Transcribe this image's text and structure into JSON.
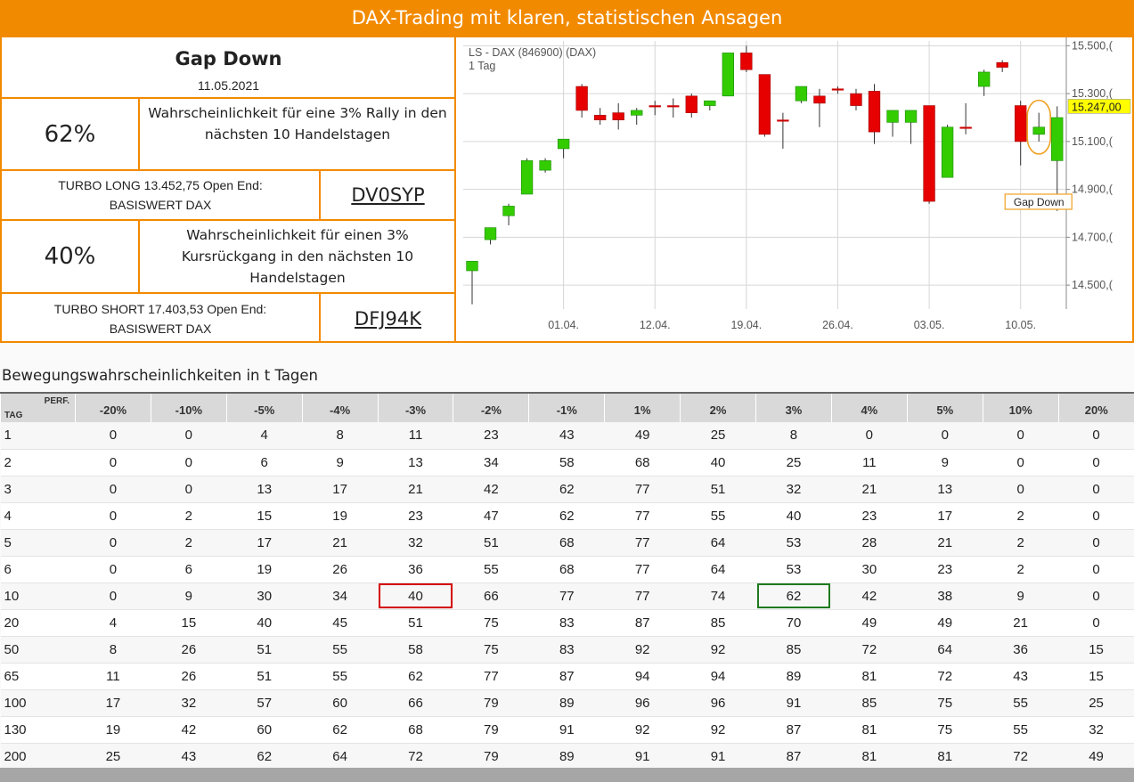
{
  "banner": "DAX-Trading mit klaren, statistischen Ansagen",
  "setup": {
    "title": "Gap Down",
    "date": "11.05.2021",
    "long": {
      "pct": "62%",
      "desc": "Wahrscheinlichkeit für eine 3% Rally in den nächsten 10 Handelstagen",
      "turbo_line1": "TURBO LONG 13.452,75 Open End:",
      "turbo_line2": "BASISWERT DAX",
      "wkn": "DV0SYP"
    },
    "short": {
      "pct": "40%",
      "desc": "Wahrscheinlichkeit für einen 3% Kursrückgang in den nächsten 10 Handelstagen",
      "turbo_line1": "TURBO SHORT 17.403,53 Open End:",
      "turbo_line2": "BASISWERT DAX",
      "wkn": "DFJ94K"
    }
  },
  "chart_data": {
    "type": "candlestick",
    "title": "LS - DAX (846900) (DAX)",
    "subtitle": "1 Tag",
    "ylim": [
      14400,
      15520
    ],
    "yticks": [
      14500,
      14700,
      14900,
      15100,
      15300,
      15500
    ],
    "ytick_labels": [
      "14.500,(",
      "14.700,(",
      "14.900,(",
      "15.100,(",
      "15.300,(",
      "15.500,("
    ],
    "xtick_labels": [
      "01.04.",
      "12.04.",
      "19.04.",
      "26.04.",
      "03.05.",
      "10.05."
    ],
    "xtick_index": [
      5,
      10,
      15,
      20,
      25,
      30
    ],
    "last_price_label": "15.247,00",
    "last_price": 15247,
    "annotation": "Gap Down",
    "annotation_index": 31,
    "grid": true,
    "colors": {
      "up": "#33cc00",
      "down": "#e60000",
      "neutral": "#cc0000",
      "annotation": "#f0a020",
      "price_tag": "#ffff00"
    },
    "candles": [
      {
        "o": 14560,
        "h": 14600,
        "l": 14420,
        "c": 14600
      },
      {
        "o": 14690,
        "h": 14740,
        "l": 14670,
        "c": 14740
      },
      {
        "o": 14790,
        "h": 14840,
        "l": 14750,
        "c": 14830
      },
      {
        "o": 14880,
        "h": 15030,
        "l": 14880,
        "c": 15020
      },
      {
        "o": 14980,
        "h": 15030,
        "l": 14970,
        "c": 15020
      },
      {
        "o": 15070,
        "h": 15110,
        "l": 15030,
        "c": 15110
      },
      {
        "o": 15330,
        "h": 15340,
        "l": 15200,
        "c": 15230
      },
      {
        "o": 15210,
        "h": 15240,
        "l": 15170,
        "c": 15190
      },
      {
        "o": 15220,
        "h": 15260,
        "l": 15150,
        "c": 15190
      },
      {
        "o": 15210,
        "h": 15240,
        "l": 15170,
        "c": 15230
      },
      {
        "o": 15250,
        "h": 15270,
        "l": 15210,
        "c": 15250
      },
      {
        "o": 15250,
        "h": 15280,
        "l": 15200,
        "c": 15250
      },
      {
        "o": 15290,
        "h": 15300,
        "l": 15200,
        "c": 15220
      },
      {
        "o": 15250,
        "h": 15270,
        "l": 15230,
        "c": 15270
      },
      {
        "o": 15290,
        "h": 15470,
        "l": 15290,
        "c": 15470
      },
      {
        "o": 15470,
        "h": 15500,
        "l": 15390,
        "c": 15400
      },
      {
        "o": 15380,
        "h": 15380,
        "l": 15120,
        "c": 15130
      },
      {
        "o": 15190,
        "h": 15220,
        "l": 15070,
        "c": 15190
      },
      {
        "o": 15270,
        "h": 15330,
        "l": 15260,
        "c": 15330
      },
      {
        "o": 15290,
        "h": 15320,
        "l": 15160,
        "c": 15260
      },
      {
        "o": 15320,
        "h": 15330,
        "l": 15300,
        "c": 15320
      },
      {
        "o": 15300,
        "h": 15320,
        "l": 15230,
        "c": 15250
      },
      {
        "o": 15310,
        "h": 15340,
        "l": 15090,
        "c": 15140
      },
      {
        "o": 15180,
        "h": 15230,
        "l": 15120,
        "c": 15230
      },
      {
        "o": 15180,
        "h": 15230,
        "l": 15090,
        "c": 15230
      },
      {
        "o": 15250,
        "h": 15250,
        "l": 14840,
        "c": 14850
      },
      {
        "o": 14950,
        "h": 15170,
        "l": 14950,
        "c": 15160
      },
      {
        "o": 15160,
        "h": 15260,
        "l": 15130,
        "c": 15160
      },
      {
        "o": 15330,
        "h": 15400,
        "l": 15290,
        "c": 15390
      },
      {
        "o": 15430,
        "h": 15440,
        "l": 15390,
        "c": 15410
      },
      {
        "o": 15250,
        "h": 15270,
        "l": 15000,
        "c": 15100
      },
      {
        "o": 15130,
        "h": 15220,
        "l": 15100,
        "c": 15160
      },
      {
        "o": 15020,
        "h": 15247,
        "l": 14810,
        "c": 15200
      }
    ]
  },
  "table": {
    "title": "Bewegungswahrscheinlichkeiten in t Tagen",
    "corner_perf": "PERF.",
    "corner_tag": "TAG",
    "columns": [
      "-20%",
      "-10%",
      "-5%",
      "-4%",
      "-3%",
      "-2%",
      "-1%",
      "1%",
      "2%",
      "3%",
      "4%",
      "5%",
      "10%",
      "20%"
    ],
    "rows": [
      {
        "tag": "1",
        "values": [
          "0",
          "0",
          "4",
          "8",
          "11",
          "23",
          "43",
          "49",
          "25",
          "8",
          "0",
          "0",
          "0",
          "0"
        ]
      },
      {
        "tag": "2",
        "values": [
          "0",
          "0",
          "6",
          "9",
          "13",
          "34",
          "58",
          "68",
          "40",
          "25",
          "11",
          "9",
          "0",
          "0"
        ]
      },
      {
        "tag": "3",
        "values": [
          "0",
          "0",
          "13",
          "17",
          "21",
          "42",
          "62",
          "77",
          "51",
          "32",
          "21",
          "13",
          "0",
          "0"
        ]
      },
      {
        "tag": "4",
        "values": [
          "0",
          "2",
          "15",
          "19",
          "23",
          "47",
          "62",
          "77",
          "55",
          "40",
          "23",
          "17",
          "2",
          "0"
        ]
      },
      {
        "tag": "5",
        "values": [
          "0",
          "2",
          "17",
          "21",
          "32",
          "51",
          "68",
          "77",
          "64",
          "53",
          "28",
          "21",
          "2",
          "0"
        ]
      },
      {
        "tag": "6",
        "values": [
          "0",
          "6",
          "19",
          "26",
          "36",
          "55",
          "68",
          "77",
          "64",
          "53",
          "30",
          "23",
          "2",
          "0"
        ]
      },
      {
        "tag": "10",
        "values": [
          "0",
          "9",
          "30",
          "34",
          "40",
          "66",
          "77",
          "77",
          "74",
          "62",
          "42",
          "38",
          "9",
          "0"
        ]
      },
      {
        "tag": "20",
        "values": [
          "4",
          "15",
          "40",
          "45",
          "51",
          "75",
          "83",
          "87",
          "85",
          "70",
          "49",
          "49",
          "21",
          "0"
        ]
      },
      {
        "tag": "50",
        "values": [
          "8",
          "26",
          "51",
          "55",
          "58",
          "75",
          "83",
          "92",
          "92",
          "85",
          "72",
          "64",
          "36",
          "15"
        ]
      },
      {
        "tag": "65",
        "values": [
          "11",
          "26",
          "51",
          "55",
          "62",
          "77",
          "87",
          "94",
          "94",
          "89",
          "81",
          "72",
          "43",
          "15"
        ]
      },
      {
        "tag": "100",
        "values": [
          "17",
          "32",
          "57",
          "60",
          "66",
          "79",
          "89",
          "96",
          "96",
          "91",
          "85",
          "75",
          "55",
          "25"
        ]
      },
      {
        "tag": "130",
        "values": [
          "19",
          "42",
          "60",
          "62",
          "68",
          "79",
          "91",
          "92",
          "92",
          "87",
          "81",
          "75",
          "55",
          "32"
        ]
      },
      {
        "tag": "200",
        "values": [
          "25",
          "43",
          "62",
          "64",
          "72",
          "79",
          "89",
          "91",
          "91",
          "87",
          "81",
          "81",
          "72",
          "49"
        ]
      }
    ],
    "highlights": [
      {
        "row": 6,
        "col": 4,
        "color": "red"
      },
      {
        "row": 6,
        "col": 9,
        "color": "green"
      }
    ]
  }
}
